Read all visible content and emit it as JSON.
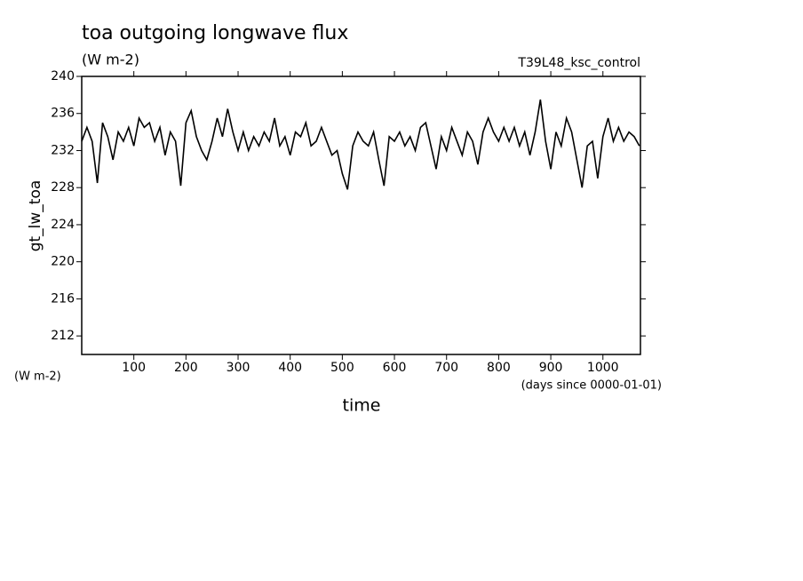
{
  "chart_data": {
    "type": "line",
    "title": "toa outgoing longwave flux",
    "subtitle": "(W m-2)",
    "annotation": "T39L48_ksc_control",
    "y_label": "gt_lw_toa",
    "y_units": "(W m-2)",
    "x_label": "time",
    "x_units": "(days since 0000-01-01)",
    "xlim": [
      0,
      1072
    ],
    "ylim": [
      210,
      240
    ],
    "xticks": [
      100,
      200,
      300,
      400,
      500,
      600,
      700,
      800,
      900,
      1000
    ],
    "yticks": [
      212,
      216,
      220,
      224,
      228,
      232,
      236,
      240
    ],
    "series": [
      {
        "color": "#000000",
        "x": [
          0,
          10,
          20,
          30,
          40,
          50,
          60,
          70,
          80,
          90,
          100,
          110,
          120,
          130,
          140,
          150,
          160,
          170,
          180,
          190,
          200,
          210,
          220,
          230,
          240,
          250,
          260,
          270,
          280,
          290,
          300,
          310,
          320,
          330,
          340,
          350,
          360,
          370,
          380,
          390,
          400,
          410,
          420,
          430,
          440,
          450,
          460,
          470,
          480,
          490,
          500,
          510,
          520,
          530,
          540,
          550,
          560,
          570,
          580,
          590,
          600,
          610,
          620,
          630,
          640,
          650,
          660,
          670,
          680,
          690,
          700,
          710,
          720,
          730,
          740,
          750,
          760,
          770,
          780,
          790,
          800,
          810,
          820,
          830,
          840,
          850,
          860,
          870,
          880,
          890,
          900,
          910,
          920,
          930,
          940,
          950,
          960,
          970,
          980,
          990,
          1000,
          1010,
          1020,
          1030,
          1040,
          1050,
          1060,
          1070
        ],
        "values": [
          233,
          234.5,
          233,
          228.5,
          235,
          233.5,
          231,
          234,
          233,
          234.5,
          232.5,
          235.5,
          234.5,
          235,
          233,
          234.5,
          231.5,
          234,
          233,
          228.2,
          235,
          236.3,
          233.5,
          232,
          231,
          233,
          235.5,
          233.5,
          236.5,
          234,
          232,
          234,
          232,
          233.5,
          232.5,
          234,
          233,
          235.5,
          232.5,
          233.5,
          231.5,
          234,
          233.5,
          235,
          232.5,
          233,
          234.5,
          233,
          231.5,
          232,
          229.5,
          227.8,
          232.5,
          234,
          233,
          232.5,
          234,
          231,
          228.2,
          233.5,
          233,
          234,
          232.5,
          233.5,
          232,
          234.5,
          235,
          232.5,
          230,
          233.5,
          232,
          234.5,
          233,
          231.5,
          234,
          233,
          230.5,
          234,
          235.5,
          234,
          233,
          234.5,
          233,
          234.5,
          232.5,
          234,
          231.5,
          234,
          237.5,
          233,
          230,
          234,
          232.5,
          235.5,
          234,
          231,
          228,
          232.5,
          233,
          229,
          233.5,
          235.5,
          233,
          234.5,
          233,
          234,
          233.5,
          232.5
        ]
      }
    ]
  }
}
